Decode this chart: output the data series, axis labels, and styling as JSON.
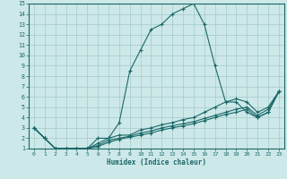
{
  "xlabel": "Humidex (Indice chaleur)",
  "ylabel": "",
  "xlim": [
    -0.5,
    23.5
  ],
  "ylim": [
    1,
    15
  ],
  "yticks": [
    1,
    2,
    3,
    4,
    5,
    6,
    7,
    8,
    9,
    10,
    11,
    12,
    13,
    14,
    15
  ],
  "xticks": [
    0,
    1,
    2,
    3,
    4,
    5,
    6,
    7,
    8,
    9,
    10,
    11,
    12,
    13,
    14,
    15,
    16,
    17,
    18,
    19,
    20,
    21,
    22,
    23
  ],
  "bg_color": "#cde8e8",
  "grid_color": "#aacece",
  "line_color": "#1a6868",
  "lines": [
    {
      "x": [
        0,
        1,
        2,
        3,
        4,
        5,
        6,
        7,
        8,
        9,
        10,
        11,
        12,
        13,
        14,
        15,
        16,
        17,
        18,
        19,
        20,
        21,
        22,
        23
      ],
      "y": [
        3,
        2,
        1,
        1,
        1,
        1,
        2,
        2,
        3.5,
        8.5,
        10.5,
        12.5,
        13,
        14,
        14.5,
        15,
        13,
        9,
        5.5,
        5.5,
        4.5,
        4,
        4.5,
        6.5
      ]
    },
    {
      "x": [
        0,
        1,
        2,
        3,
        4,
        5,
        6,
        7,
        8,
        9,
        10,
        11,
        12,
        13,
        14,
        15,
        16,
        17,
        18,
        19,
        20,
        21,
        22,
        23
      ],
      "y": [
        3,
        2,
        1,
        1,
        1,
        1,
        1.5,
        2,
        2.3,
        2.3,
        2.8,
        3.0,
        3.3,
        3.5,
        3.8,
        4.0,
        4.5,
        5.0,
        5.5,
        5.8,
        5.5,
        4.5,
        5.0,
        6.5
      ]
    },
    {
      "x": [
        0,
        1,
        2,
        3,
        4,
        5,
        6,
        7,
        8,
        9,
        10,
        11,
        12,
        13,
        14,
        15,
        16,
        17,
        18,
        19,
        20,
        21,
        22,
        23
      ],
      "y": [
        3,
        2,
        1,
        1,
        1,
        1,
        1.3,
        1.8,
        2.0,
        2.2,
        2.5,
        2.7,
        3.0,
        3.2,
        3.4,
        3.6,
        3.9,
        4.2,
        4.5,
        4.8,
        5.0,
        4.2,
        4.8,
        6.5
      ]
    },
    {
      "x": [
        0,
        1,
        2,
        3,
        4,
        5,
        6,
        7,
        8,
        9,
        10,
        11,
        12,
        13,
        14,
        15,
        16,
        17,
        18,
        19,
        20,
        21,
        22,
        23
      ],
      "y": [
        3,
        2,
        1,
        1,
        1,
        1,
        1.2,
        1.6,
        1.9,
        2.1,
        2.3,
        2.5,
        2.8,
        3.0,
        3.2,
        3.4,
        3.7,
        4.0,
        4.3,
        4.5,
        4.8,
        4.0,
        4.5,
        6.5
      ]
    }
  ]
}
